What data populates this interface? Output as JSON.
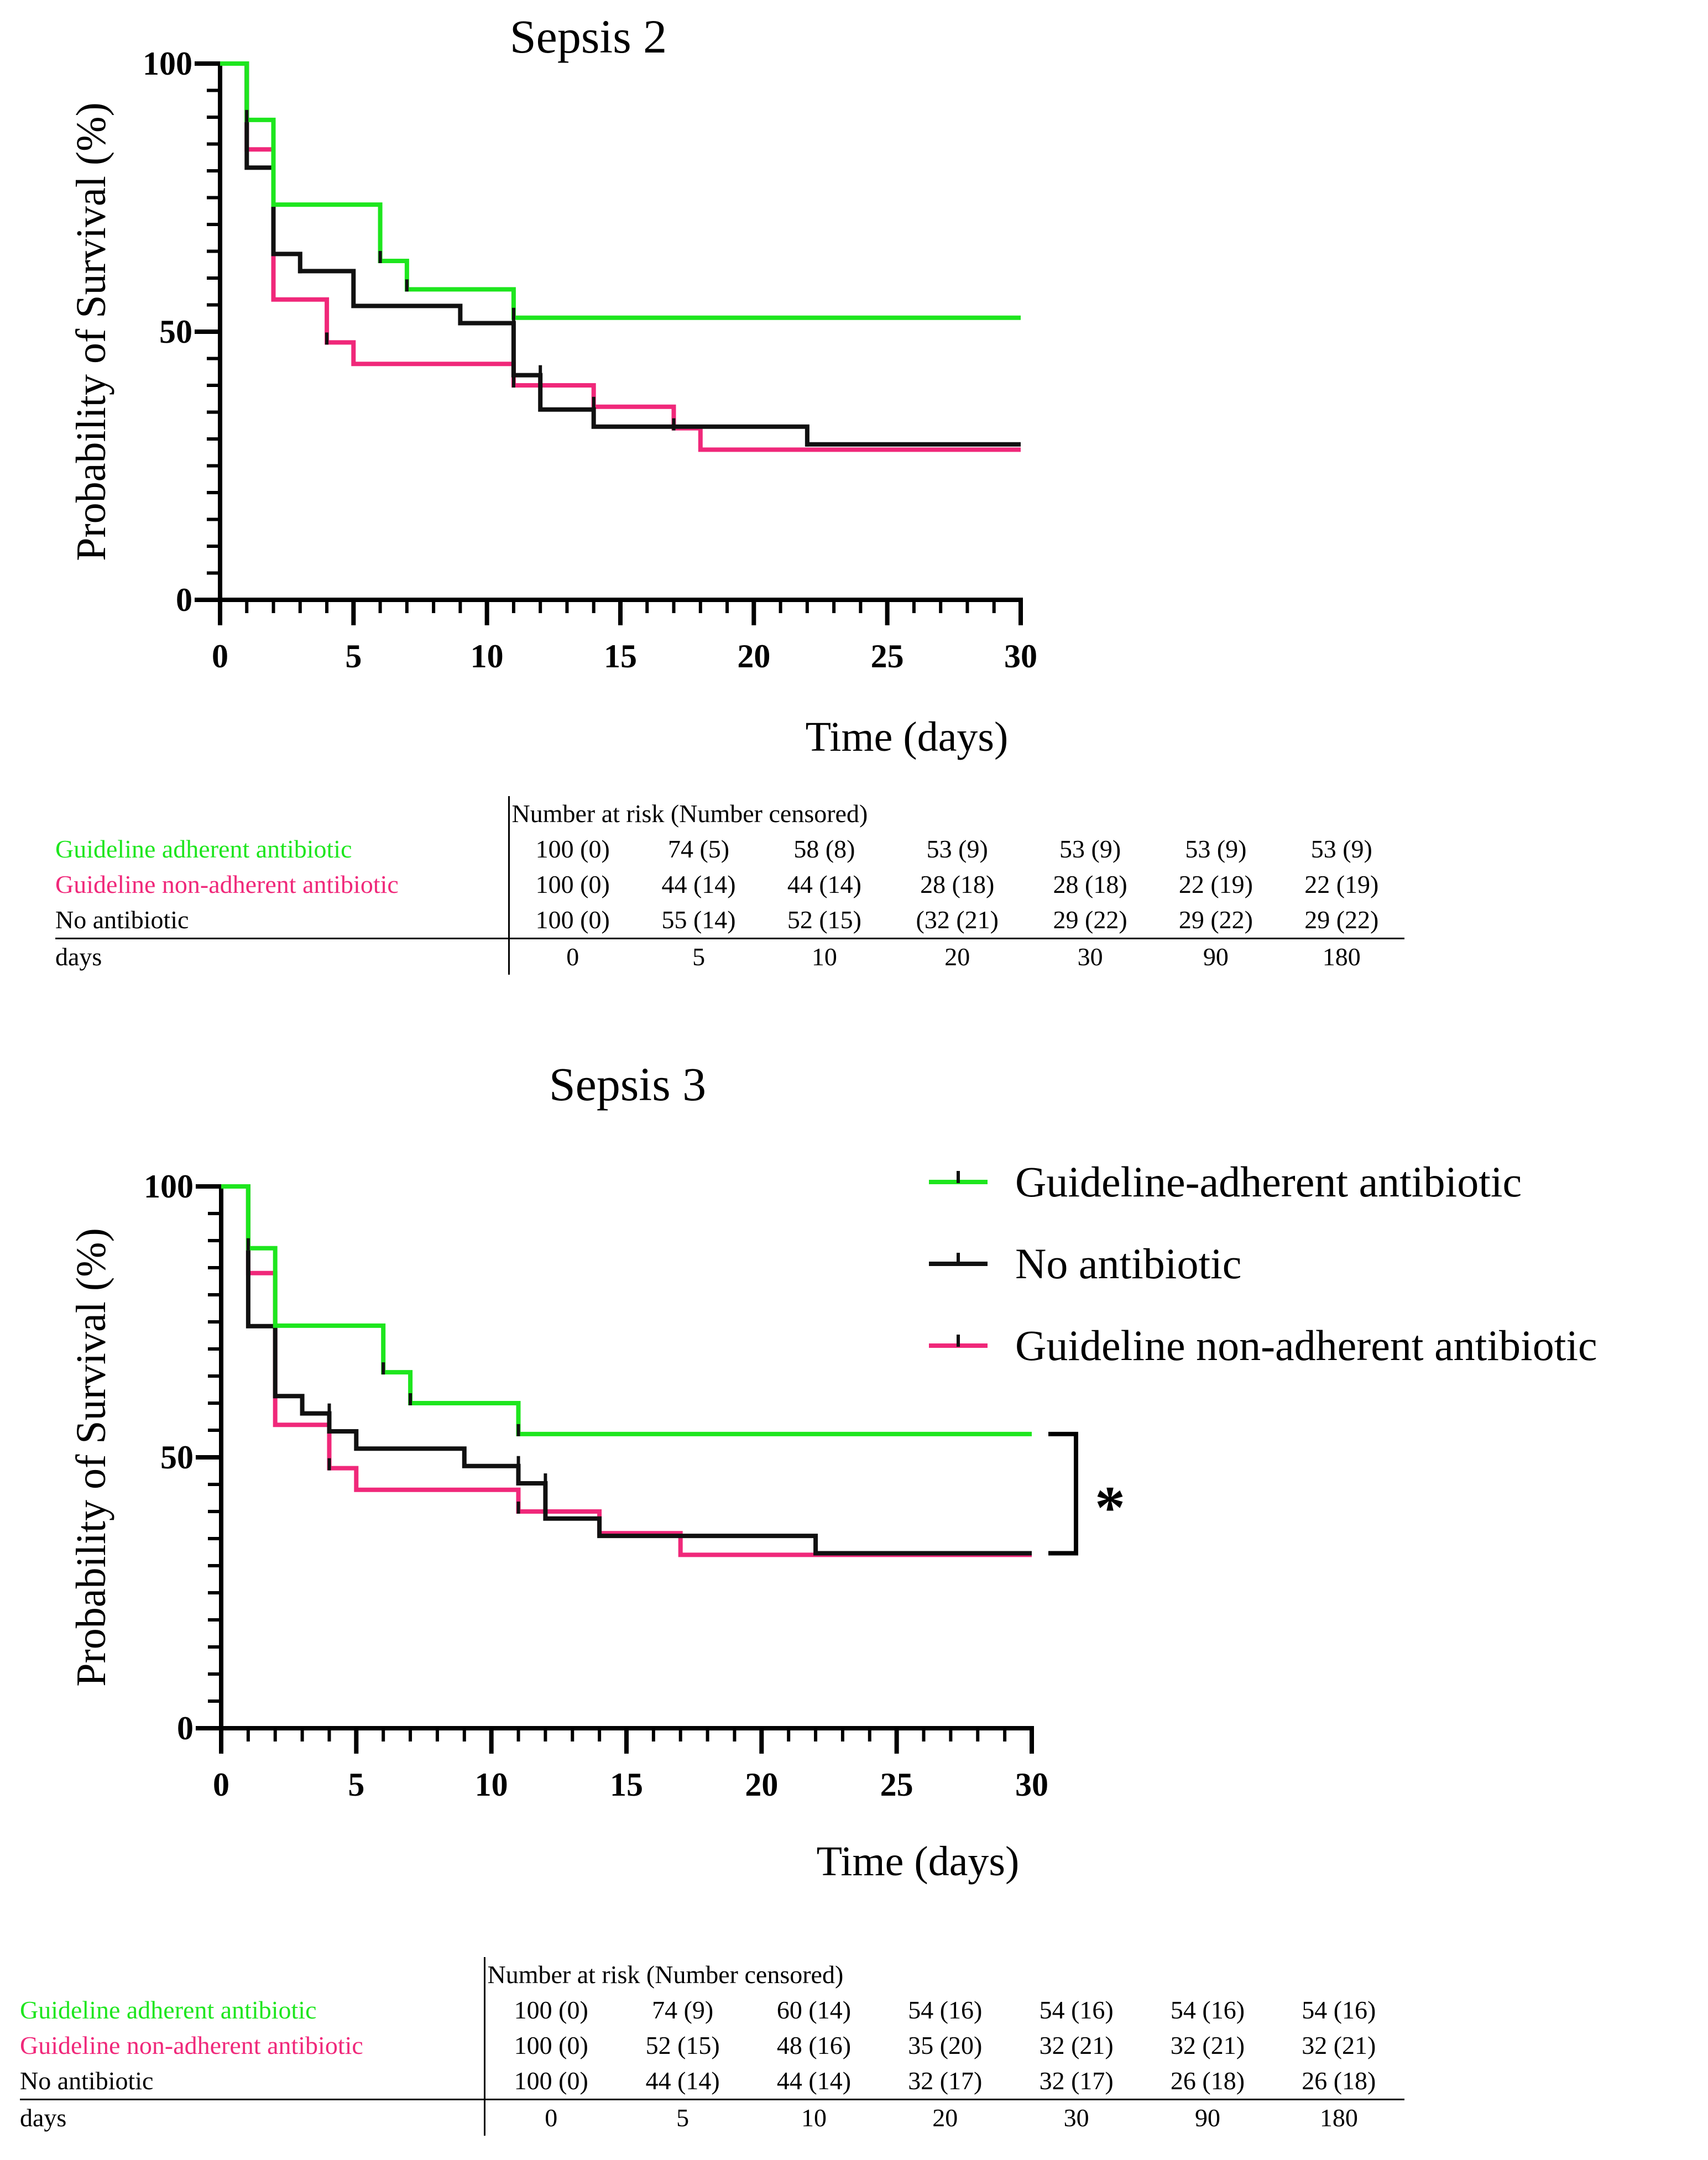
{
  "colors": {
    "green": "#1ee61e",
    "pink": "#f0287a",
    "black": "#111111"
  },
  "chart_data": [
    {
      "type": "line",
      "title": "Sepsis 2",
      "xlabel": "Time (days)",
      "ylabel": "Probability of Survival (%)",
      "xlim": [
        0,
        30
      ],
      "ylim": [
        0,
        100
      ],
      "xticks": [
        0,
        5,
        10,
        15,
        20,
        25,
        30
      ],
      "yticks": [
        0,
        50,
        100
      ],
      "series": [
        {
          "name": "Guideline-adherent antibiotic",
          "color": "#1ee61e",
          "steps": [
            [
              0,
              100
            ],
            [
              1,
              100
            ],
            [
              1,
              89.5
            ],
            [
              2,
              89.5
            ],
            [
              2,
              73.7
            ],
            [
              6,
              73.7
            ],
            [
              6,
              63.2
            ],
            [
              7,
              63.2
            ],
            [
              7,
              57.9
            ],
            [
              11,
              57.9
            ],
            [
              11,
              52.6
            ],
            [
              30,
              52.6
            ]
          ],
          "censors": [
            [
              1,
              89.5
            ],
            [
              6,
              63.2
            ],
            [
              7,
              57.9
            ],
            [
              11,
              52.6
            ]
          ]
        },
        {
          "name": "Guideline non-adherent antibiotic",
          "color": "#f0287a",
          "steps": [
            [
              0,
              100
            ],
            [
              1,
              100
            ],
            [
              1,
              84
            ],
            [
              2,
              84
            ],
            [
              2,
              56
            ],
            [
              4,
              56
            ],
            [
              4,
              48
            ],
            [
              5,
              48
            ],
            [
              5,
              44
            ],
            [
              11,
              44
            ],
            [
              11,
              40
            ],
            [
              14,
              40
            ],
            [
              14,
              36
            ],
            [
              17,
              36
            ],
            [
              17,
              32
            ],
            [
              18,
              32
            ],
            [
              18,
              28
            ],
            [
              30,
              28
            ]
          ],
          "censors": [
            [
              1,
              84
            ],
            [
              2,
              74
            ],
            [
              4,
              48
            ],
            [
              11,
              40
            ],
            [
              14,
              36
            ],
            [
              17,
              32
            ]
          ]
        },
        {
          "name": "No antibiotic",
          "color": "#111111",
          "steps": [
            [
              0,
              100
            ],
            [
              1,
              100
            ],
            [
              1,
              80.6
            ],
            [
              2,
              80.6
            ],
            [
              2,
              64.5
            ],
            [
              3,
              64.5
            ],
            [
              3,
              61.3
            ],
            [
              5,
              61.3
            ],
            [
              5,
              54.8
            ],
            [
              9,
              54.8
            ],
            [
              9,
              51.6
            ],
            [
              11,
              51.6
            ],
            [
              11,
              41.9
            ],
            [
              12,
              41.9
            ],
            [
              12,
              35.5
            ],
            [
              14,
              35.5
            ],
            [
              14,
              32.3
            ],
            [
              22,
              32.3
            ],
            [
              22,
              29
            ],
            [
              30,
              29
            ]
          ],
          "censors": [
            [
              1,
              90
            ],
            [
              3,
              61.3
            ],
            [
              11,
              51.6
            ],
            [
              12,
              41.9
            ],
            [
              22,
              29
            ]
          ]
        }
      ]
    },
    {
      "type": "line",
      "title": "Sepsis 3",
      "xlabel": "Time (days)",
      "ylabel": "Probability of Survival (%)",
      "xlim": [
        0,
        30
      ],
      "ylim": [
        0,
        100
      ],
      "xticks": [
        0,
        5,
        10,
        15,
        20,
        25,
        30
      ],
      "yticks": [
        0,
        50,
        100
      ],
      "significance": "*",
      "legend": [
        "Guideline-adherent antibiotic",
        "No antibiotic",
        "Guideline non-adherent antibiotic"
      ],
      "series": [
        {
          "name": "Guideline-adherent antibiotic",
          "color": "#1ee61e",
          "steps": [
            [
              0,
              100
            ],
            [
              1,
              100
            ],
            [
              1,
              88.6
            ],
            [
              2,
              88.6
            ],
            [
              2,
              74.3
            ],
            [
              6,
              74.3
            ],
            [
              6,
              65.7
            ],
            [
              7,
              65.7
            ],
            [
              7,
              60
            ],
            [
              11,
              60
            ],
            [
              11,
              54.3
            ],
            [
              30,
              54.3
            ]
          ],
          "censors": [
            [
              1,
              88.6
            ],
            [
              6,
              65.7
            ],
            [
              7,
              60
            ],
            [
              11,
              54.3
            ]
          ]
        },
        {
          "name": "Guideline non-adherent antibiotic",
          "color": "#f0287a",
          "steps": [
            [
              0,
              100
            ],
            [
              1,
              100
            ],
            [
              1,
              84
            ],
            [
              2,
              84
            ],
            [
              2,
              56
            ],
            [
              4,
              56
            ],
            [
              4,
              48
            ],
            [
              5,
              48
            ],
            [
              5,
              44
            ],
            [
              11,
              44
            ],
            [
              11,
              40
            ],
            [
              14,
              40
            ],
            [
              14,
              36
            ],
            [
              17,
              36
            ],
            [
              17,
              32
            ],
            [
              30,
              32
            ]
          ],
          "censors": [
            [
              1,
              84
            ],
            [
              4,
              48
            ],
            [
              11,
              40
            ],
            [
              14,
              36
            ]
          ]
        },
        {
          "name": "No antibiotic",
          "color": "#111111",
          "steps": [
            [
              0,
              100
            ],
            [
              1,
              100
            ],
            [
              1,
              74.2
            ],
            [
              2,
              74.2
            ],
            [
              2,
              61.3
            ],
            [
              3,
              61.3
            ],
            [
              3,
              58.1
            ],
            [
              4,
              58.1
            ],
            [
              4,
              54.8
            ],
            [
              5,
              54.8
            ],
            [
              5,
              51.6
            ],
            [
              9,
              51.6
            ],
            [
              9,
              48.4
            ],
            [
              11,
              48.4
            ],
            [
              11,
              45.2
            ],
            [
              12,
              45.2
            ],
            [
              12,
              38.7
            ],
            [
              14,
              38.7
            ],
            [
              14,
              35.5
            ],
            [
              22,
              35.5
            ],
            [
              22,
              32.3
            ],
            [
              30,
              32.3
            ]
          ],
          "censors": [
            [
              1,
              90
            ],
            [
              2,
              75
            ],
            [
              4,
              58.1
            ],
            [
              11,
              48.4
            ],
            [
              12,
              45.2
            ]
          ]
        }
      ]
    }
  ],
  "risk_tables": [
    {
      "header": "Number at risk (Number censored)",
      "rows": [
        {
          "label": "Guideline adherent antibiotic",
          "color": "#1ee61e",
          "values": [
            "100 (0)",
            "74 (5)",
            "58 (8)",
            "53 (9)",
            "53 (9)",
            "53 (9)",
            "53 (9)"
          ]
        },
        {
          "label": "Guideline non-adherent antibiotic",
          "color": "#f0287a",
          "values": [
            "100 (0)",
            "44 (14)",
            "44 (14)",
            "28 (18)",
            "28 (18)",
            "22 (19)",
            "22 (19)"
          ]
        },
        {
          "label": "No antibiotic",
          "color": "#000000",
          "values": [
            "100 (0)",
            "55 (14)",
            "52 (15)",
            "(32 (21)",
            "29 (22)",
            "29 (22)",
            "29 (22)"
          ]
        }
      ],
      "days_label": "days",
      "days": [
        "0",
        "5",
        "10",
        "20",
        "30",
        "90",
        "180"
      ]
    },
    {
      "header": "Number at risk (Number censored)",
      "rows": [
        {
          "label": "Guideline adherent antibiotic",
          "color": "#1ee61e",
          "values": [
            "100 (0)",
            "74 (9)",
            "60 (14)",
            "54 (16)",
            "54 (16)",
            "54 (16)",
            "54 (16)"
          ]
        },
        {
          "label": "Guideline non-adherent antibiotic",
          "color": "#f0287a",
          "values": [
            "100 (0)",
            "52 (15)",
            "48 (16)",
            "35 (20)",
            "32 (21)",
            "32 (21)",
            "32 (21)"
          ]
        },
        {
          "label": "No antibiotic",
          "color": "#000000",
          "values": [
            "100 (0)",
            "44 (14)",
            "44 (14)",
            "32 (17)",
            "32 (17)",
            "26 (18)",
            "26 (18)"
          ]
        }
      ],
      "days_label": "days",
      "days": [
        "0",
        "5",
        "10",
        "20",
        "30",
        "90",
        "180"
      ]
    }
  ]
}
